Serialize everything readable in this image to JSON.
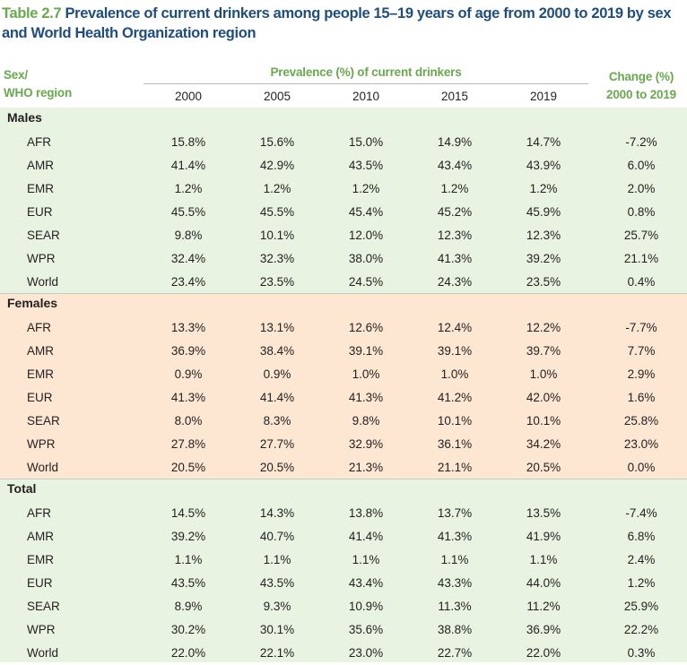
{
  "title": {
    "number": "Table 2.7",
    "text": "Prevalence of current drinkers among people 15–19 years of age from 2000 to 2019 by sex and World Health Organization region"
  },
  "header": {
    "col1_line1": "Sex/",
    "col1_line2": "WHO region",
    "prevalence": "Prevalence (%) of current drinkers",
    "years": [
      "2000",
      "2005",
      "2010",
      "2015",
      "2019"
    ],
    "change_line1": "Change (%)",
    "change_line2": "2000 to 2019"
  },
  "groups": [
    {
      "label": "Males",
      "rows": [
        {
          "region": "AFR",
          "values": [
            "15.8%",
            "15.6%",
            "15.0%",
            "14.9%",
            "14.7%"
          ],
          "change": "-7.2%"
        },
        {
          "region": "AMR",
          "values": [
            "41.4%",
            "42.9%",
            "43.5%",
            "43.4%",
            "43.9%"
          ],
          "change": "6.0%"
        },
        {
          "region": "EMR",
          "values": [
            "1.2%",
            "1.2%",
            "1.2%",
            "1.2%",
            "1.2%"
          ],
          "change": "2.0%"
        },
        {
          "region": "EUR",
          "values": [
            "45.5%",
            "45.5%",
            "45.4%",
            "45.2%",
            "45.9%"
          ],
          "change": "0.8%"
        },
        {
          "region": "SEAR",
          "values": [
            "9.8%",
            "10.1%",
            "12.0%",
            "12.3%",
            "12.3%"
          ],
          "change": "25.7%"
        },
        {
          "region": "WPR",
          "values": [
            "32.4%",
            "32.3%",
            "38.0%",
            "41.3%",
            "39.2%"
          ],
          "change": "21.1%"
        },
        {
          "region": "World",
          "values": [
            "23.4%",
            "23.5%",
            "24.5%",
            "24.3%",
            "23.5%"
          ],
          "change": "0.4%"
        }
      ]
    },
    {
      "label": "Females",
      "rows": [
        {
          "region": "AFR",
          "values": [
            "13.3%",
            "13.1%",
            "12.6%",
            "12.4%",
            "12.2%"
          ],
          "change": "-7.7%"
        },
        {
          "region": "AMR",
          "values": [
            "36.9%",
            "38.4%",
            "39.1%",
            "39.1%",
            "39.7%"
          ],
          "change": "7.7%"
        },
        {
          "region": "EMR",
          "values": [
            "0.9%",
            "0.9%",
            "1.0%",
            "1.0%",
            "1.0%"
          ],
          "change": "2.9%"
        },
        {
          "region": "EUR",
          "values": [
            "41.3%",
            "41.4%",
            "41.3%",
            "41.2%",
            "42.0%"
          ],
          "change": "1.6%"
        },
        {
          "region": "SEAR",
          "values": [
            "8.0%",
            "8.3%",
            "9.8%",
            "10.1%",
            "10.1%"
          ],
          "change": "25.8%"
        },
        {
          "region": "WPR",
          "values": [
            "27.8%",
            "27.7%",
            "32.9%",
            "36.1%",
            "34.2%"
          ],
          "change": "23.0%"
        },
        {
          "region": "World",
          "values": [
            "20.5%",
            "20.5%",
            "21.3%",
            "21.1%",
            "20.5%"
          ],
          "change": "0.0%"
        }
      ]
    },
    {
      "label": "Total",
      "rows": [
        {
          "region": "AFR",
          "values": [
            "14.5%",
            "14.3%",
            "13.8%",
            "13.7%",
            "13.5%"
          ],
          "change": "-7.4%"
        },
        {
          "region": "AMR",
          "values": [
            "39.2%",
            "40.7%",
            "41.4%",
            "41.3%",
            "41.9%"
          ],
          "change": "6.8%"
        },
        {
          "region": "EMR",
          "values": [
            "1.1%",
            "1.1%",
            "1.1%",
            "1.1%",
            "1.1%"
          ],
          "change": "2.4%"
        },
        {
          "region": "EUR",
          "values": [
            "43.5%",
            "43.5%",
            "43.4%",
            "43.3%",
            "44.0%"
          ],
          "change": "1.2%"
        },
        {
          "region": "SEAR",
          "values": [
            "8.9%",
            "9.3%",
            "10.9%",
            "11.3%",
            "11.2%"
          ],
          "change": "25.9%"
        },
        {
          "region": "WPR",
          "values": [
            "30.2%",
            "30.1%",
            "35.6%",
            "38.8%",
            "36.9%"
          ],
          "change": "22.2%"
        },
        {
          "region": "World",
          "values": [
            "22.0%",
            "22.1%",
            "23.0%",
            "22.7%",
            "22.0%"
          ],
          "change": "0.3%"
        }
      ]
    }
  ]
}
